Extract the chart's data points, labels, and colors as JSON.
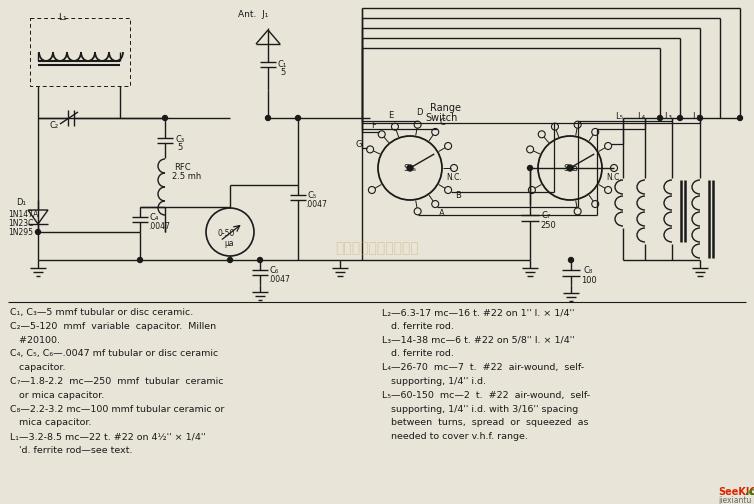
{
  "bg_color": "#e8e5d8",
  "line_color": "#1a1a1a",
  "text_color": "#1a1a1a",
  "watermark": "杭州柯睢科技有限公司",
  "watermark_color": "#c8b070",
  "left_notes": [
    "C₁, C₃—5 mmf tubular or disc ceramic.",
    "C₂—5-120  mmf  variable  capacitor.  Millen",
    "   #20100.",
    "C₄, C₅, C₆—.0047 mf tubular or disc ceramic",
    "   capacitor.",
    "C₇—1.8-2.2  mc—250  mmf  tubular  ceramic",
    "   or mica capacitor.",
    "C₈—2.2-3.2 mc—100 mmf tubular ceramic or",
    "   mica capacitor.",
    "L₁—3.2-8.5 mc—22 t. #22 on 4½'' × 1/4''",
    "   'd. ferrite rod—see text."
  ],
  "right_notes": [
    "L₂—6.3-17 mc—16 t. #22 on 1'' l. × 1/4''",
    "   d. ferrite rod.",
    "L₃—14-38 mc—6 t. #22 on 5/8'' l. × 1/4''",
    "   d. ferrite rod.",
    "L₄—26-70  mc—7  t.  #22  air-wound,  self-",
    "   supporting, 1/4'' i.d.",
    "L₅—60-150  mc—2  t.  #22  air-wound,  self-",
    "   supporting, 1/4'' i.d. with 3/16'' spacing",
    "   between  turns,  spread  or  squeezed  as",
    "   needed to cover v.h.f. range."
  ]
}
